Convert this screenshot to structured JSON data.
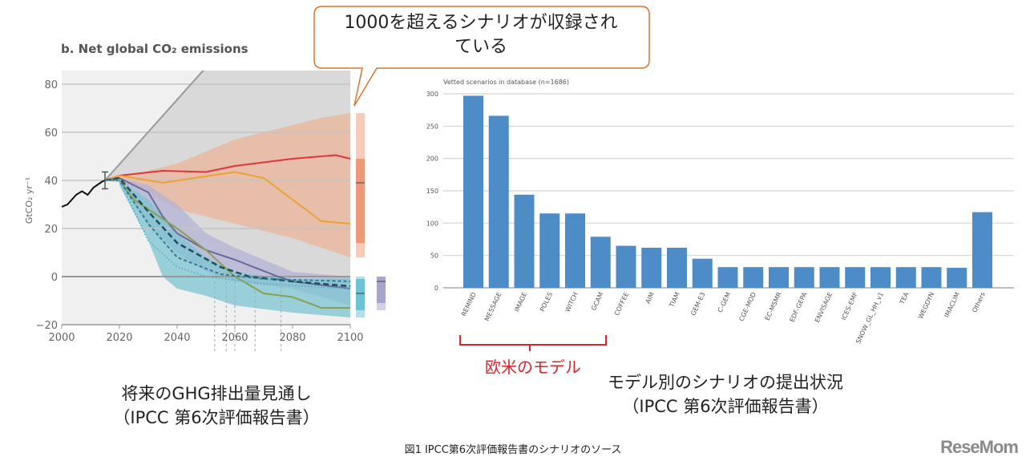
{
  "callout": {
    "line1": "1000を超えるシナリオが収録され",
    "line2": "ている",
    "border_color": "#d9742c"
  },
  "annotation": {
    "bracket_label": "欧米のモデル",
    "color": "#d9262c"
  },
  "captions": {
    "left_line1": "将来のGHG排出量見通し",
    "left_line2": "（IPCC 第6次評価報告書）",
    "right_line1": "モデル別のシナリオの提出状況",
    "right_line2": "（IPCC 第6次評価報告書）",
    "figure": "図1 IPCC第6次評価報告書のシナリオのソース"
  },
  "logo": "ReseMom",
  "chart_data": [
    {
      "type": "line",
      "title": "b. Net global CO₂ emissions",
      "ylabel": "GtCO₂ yr⁻¹",
      "xlim": [
        2000,
        2100
      ],
      "ylim": [
        -20,
        85
      ],
      "xticks": [
        "2000",
        "2020",
        "2040",
        "2060",
        "2080",
        "2100"
      ],
      "yticks": [
        "80",
        "60",
        "40",
        "20",
        "0",
        "−20"
      ],
      "grid": true,
      "series": [
        {
          "color": "#111111",
          "points": [
            [
              2000,
              29
            ],
            [
              2002,
              30
            ],
            [
              2005,
              34
            ],
            [
              2007,
              35.5
            ],
            [
              2009,
              34
            ],
            [
              2011,
              37
            ],
            [
              2014,
              39.5
            ],
            [
              2015,
              40
            ]
          ]
        },
        {
          "color": "#999999",
          "points": [
            [
              2015,
              40
            ],
            [
              2050,
              87
            ]
          ]
        },
        {
          "color": "#e0363a",
          "points": [
            [
              2015,
              40
            ],
            [
              2020,
              42
            ],
            [
              2035,
              44
            ],
            [
              2050,
              43.5
            ],
            [
              2060,
              46
            ],
            [
              2080,
              49
            ],
            [
              2095,
              50.5
            ],
            [
              2100,
              49
            ]
          ]
        },
        {
          "color": "#f0a030",
          "points": [
            [
              2015,
              40
            ],
            [
              2020,
              42
            ],
            [
              2035,
              39
            ],
            [
              2060,
              43.5
            ],
            [
              2070,
              41
            ],
            [
              2090,
              23
            ],
            [
              2100,
              22
            ]
          ]
        },
        {
          "color": "#6a6a9a",
          "points": [
            [
              2015,
              40
            ],
            [
              2020,
              41
            ],
            [
              2030,
              35
            ],
            [
              2035,
              25
            ],
            [
              2040,
              18
            ],
            [
              2050,
              11
            ],
            [
              2060,
              7
            ],
            [
              2075,
              0
            ],
            [
              2080,
              -2
            ],
            [
              2100,
              -5
            ]
          ]
        },
        {
          "color": "#8aa050",
          "points": [
            [
              2015,
              40
            ],
            [
              2020,
              40
            ],
            [
              2025,
              32
            ],
            [
              2040,
              20
            ],
            [
              2050,
              11
            ],
            [
              2060,
              0
            ],
            [
              2070,
              -7
            ],
            [
              2080,
              -8.5
            ],
            [
              2090,
              -13
            ],
            [
              2100,
              -13
            ]
          ]
        },
        {
          "color": "#1d4f5e",
          "dash": "long",
          "points": [
            [
              2015,
              40
            ],
            [
              2020,
              41
            ],
            [
              2030,
              27
            ],
            [
              2040,
              14
            ],
            [
              2055,
              4
            ],
            [
              2065,
              0
            ],
            [
              2080,
              -2
            ],
            [
              2100,
              -4
            ]
          ]
        },
        {
          "color": "#2f7d95",
          "dash": "short",
          "points": [
            [
              2015,
              40
            ],
            [
              2020,
              40
            ],
            [
              2030,
              22
            ],
            [
              2040,
              8
            ],
            [
              2055,
              1
            ],
            [
              2070,
              -1
            ],
            [
              2100,
              -2
            ]
          ]
        },
        {
          "color": "#5ab0c8",
          "dash": "dot",
          "points": [
            [
              2015,
              40
            ],
            [
              2020,
              40
            ],
            [
              2030,
              15
            ],
            [
              2040,
              4
            ],
            [
              2050,
              0
            ],
            [
              2070,
              -3
            ],
            [
              2100,
              -5
            ]
          ]
        }
      ],
      "bands": [
        {
          "color": "#d9d9d9",
          "upper": [
            [
              2015,
              40
            ],
            [
              2050,
              87
            ],
            [
              2100,
              87
            ]
          ],
          "lower": [
            [
              2015,
              40
            ],
            [
              2020,
              39
            ],
            [
              2030,
              20
            ],
            [
              2040,
              8
            ],
            [
              2060,
              2
            ],
            [
              2080,
              0
            ],
            [
              2100,
              -2
            ]
          ]
        },
        {
          "color": "#eab49a",
          "upper": [
            [
              2020,
              41
            ],
            [
              2040,
              47
            ],
            [
              2060,
              57
            ],
            [
              2080,
              63
            ],
            [
              2090,
              66
            ],
            [
              2100,
              68
            ]
          ],
          "lower": [
            [
              2020,
              39
            ],
            [
              2030,
              35
            ],
            [
              2040,
              28
            ],
            [
              2060,
              22
            ],
            [
              2080,
              16
            ],
            [
              2100,
              8
            ]
          ]
        },
        {
          "color": "#b3b3d6",
          "upper": [
            [
              2020,
              41
            ],
            [
              2030,
              38
            ],
            [
              2040,
              30
            ],
            [
              2050,
              18
            ],
            [
              2060,
              12
            ],
            [
              2080,
              2
            ],
            [
              2100,
              0
            ]
          ],
          "lower": [
            [
              2020,
              39
            ],
            [
              2030,
              22
            ],
            [
              2040,
              10
            ],
            [
              2050,
              2
            ],
            [
              2060,
              -2
            ],
            [
              2080,
              -5
            ],
            [
              2100,
              -12
            ]
          ]
        },
        {
          "color": "#7cc4d2",
          "upper": [
            [
              2020,
              40
            ],
            [
              2030,
              32
            ],
            [
              2040,
              18
            ],
            [
              2050,
              8
            ],
            [
              2060,
              2
            ],
            [
              2080,
              -1
            ],
            [
              2100,
              -1
            ]
          ],
          "lower": [
            [
              2020,
              38
            ],
            [
              2030,
              15
            ],
            [
              2035,
              0
            ],
            [
              2040,
              -5
            ],
            [
              2050,
              -8
            ],
            [
              2060,
              -12
            ],
            [
              2080,
              -15
            ],
            [
              2100,
              -17
            ]
          ]
        }
      ],
      "net_zero_years": [
        2053,
        2057,
        2060,
        2067,
        2076
      ],
      "range_bars_2100": [
        {
          "color": "#eb8b6a",
          "outer": [
            8,
            68
          ],
          "inner": [
            14,
            49
          ],
          "median": 39
        },
        {
          "color": "#5bbad0",
          "outer": [
            -17,
            0
          ],
          "inner": [
            -14,
            -1
          ],
          "median": -7
        },
        {
          "color": "#9a9ac8",
          "outer": [
            -14,
            0
          ],
          "inner": [
            -11,
            0
          ],
          "median": -2
        }
      ]
    },
    {
      "type": "bar",
      "title": "Vetted scenarios in database (n=1686)",
      "ylim": [
        0,
        300
      ],
      "yticks": [
        "0",
        "50",
        "100",
        "150",
        "200",
        "250",
        "300"
      ],
      "grid": true,
      "color": "#4e8cc8",
      "categories": [
        "REMIND",
        "MESSAGE",
        "IMAGE",
        "POLES",
        "WITCH",
        "GCAM",
        "COFFEE",
        "AIM",
        "TIAM",
        "GEM-E3",
        "C-GEM",
        "CGE-MOD",
        "EC-MSMR",
        "EDF-GEPA",
        "ENVISAGE",
        "ICES-EMF",
        "SNOW_GL_HH_v1",
        "TEA",
        "WEGDYN",
        "IMACLIM",
        "Others"
      ],
      "values": [
        297,
        266,
        144,
        115,
        115,
        79,
        65,
        62,
        62,
        45,
        32,
        32,
        32,
        32,
        32,
        32,
        32,
        32,
        32,
        31,
        117
      ]
    }
  ]
}
